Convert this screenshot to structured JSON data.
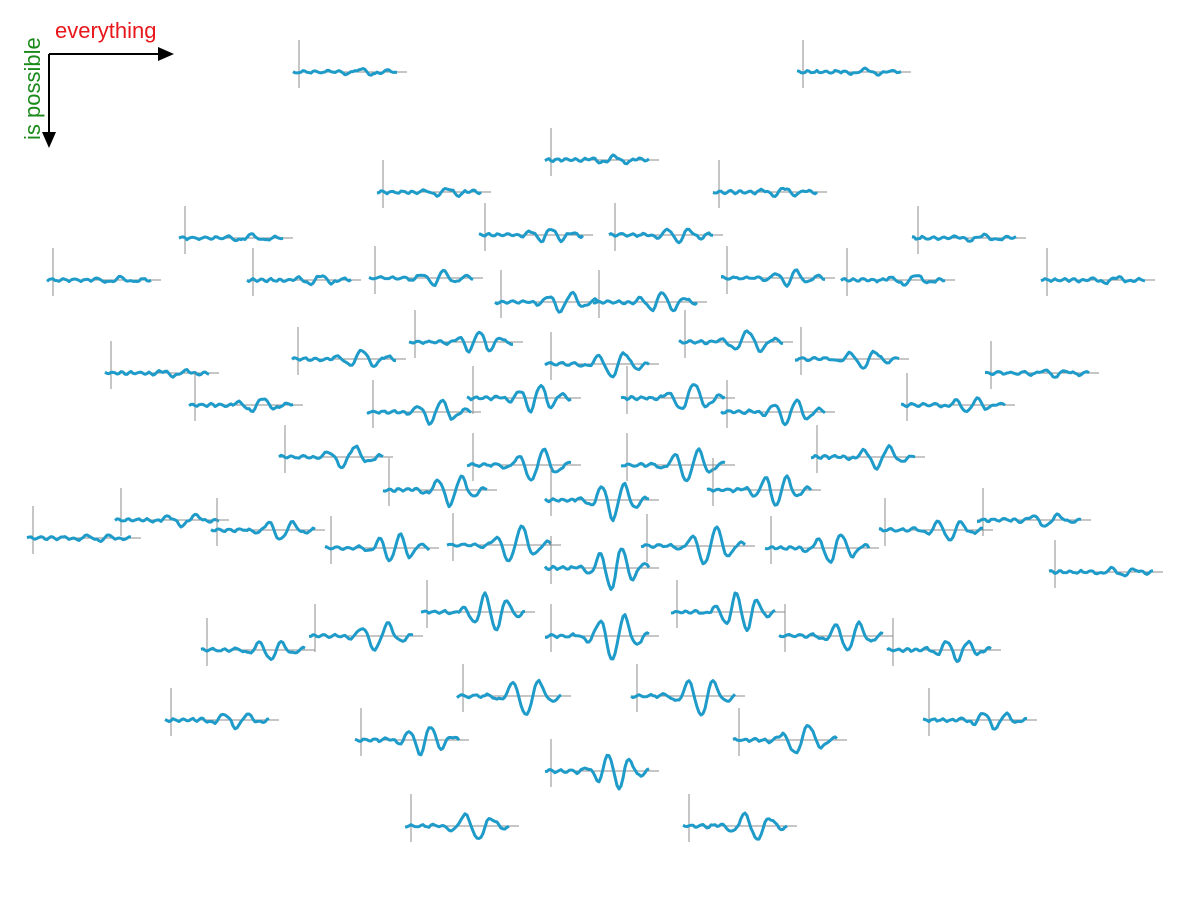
{
  "chart_data": {
    "type": "line",
    "title": "",
    "legend": "none",
    "grid": false,
    "x_axis_label": "everything",
    "y_axis_label": "is possible",
    "colors": {
      "x_label": "#e8171b",
      "y_label": "#1a8a1a",
      "axis_arrow": "#000000",
      "trace": "#1e9bc9",
      "trace_axis": "#8c8c8c"
    }
  }
}
